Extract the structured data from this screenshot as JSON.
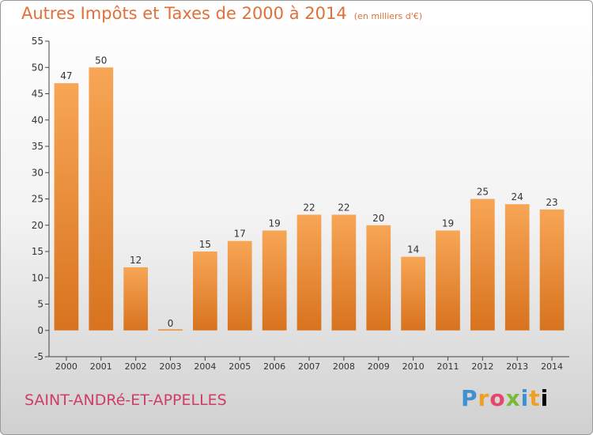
{
  "header": {
    "title": "Autres Impôts et Taxes de 2000 à 2014",
    "unit": "(en milliers d'€)"
  },
  "footer": {
    "commune": "SAINT-ANDRé-ET-APPELLES",
    "logo": [
      "P",
      "r",
      "o",
      "x",
      "i",
      "t",
      "i"
    ]
  },
  "colors": {
    "bar_light": "#f7a656",
    "bar_dark": "#d8731e",
    "title": "#e0703a",
    "commune": "#cf3d67"
  },
  "chart_data": {
    "type": "bar",
    "title": "Autres Impôts et Taxes de 2000 à 2014",
    "subtitle": "(en milliers d'€)",
    "xlabel": "",
    "ylabel": "",
    "categories": [
      "2000",
      "2001",
      "2002",
      "2003",
      "2004",
      "2005",
      "2006",
      "2007",
      "2008",
      "2009",
      "2010",
      "2011",
      "2012",
      "2013",
      "2014"
    ],
    "values": [
      47,
      50,
      12,
      0,
      15,
      17,
      19,
      22,
      22,
      20,
      14,
      19,
      25,
      24,
      23
    ],
    "ylim": [
      -5,
      55
    ],
    "yticks": [
      -5,
      0,
      5,
      10,
      15,
      20,
      25,
      30,
      35,
      40,
      45,
      50,
      55
    ],
    "grid": false,
    "legend": "none"
  }
}
